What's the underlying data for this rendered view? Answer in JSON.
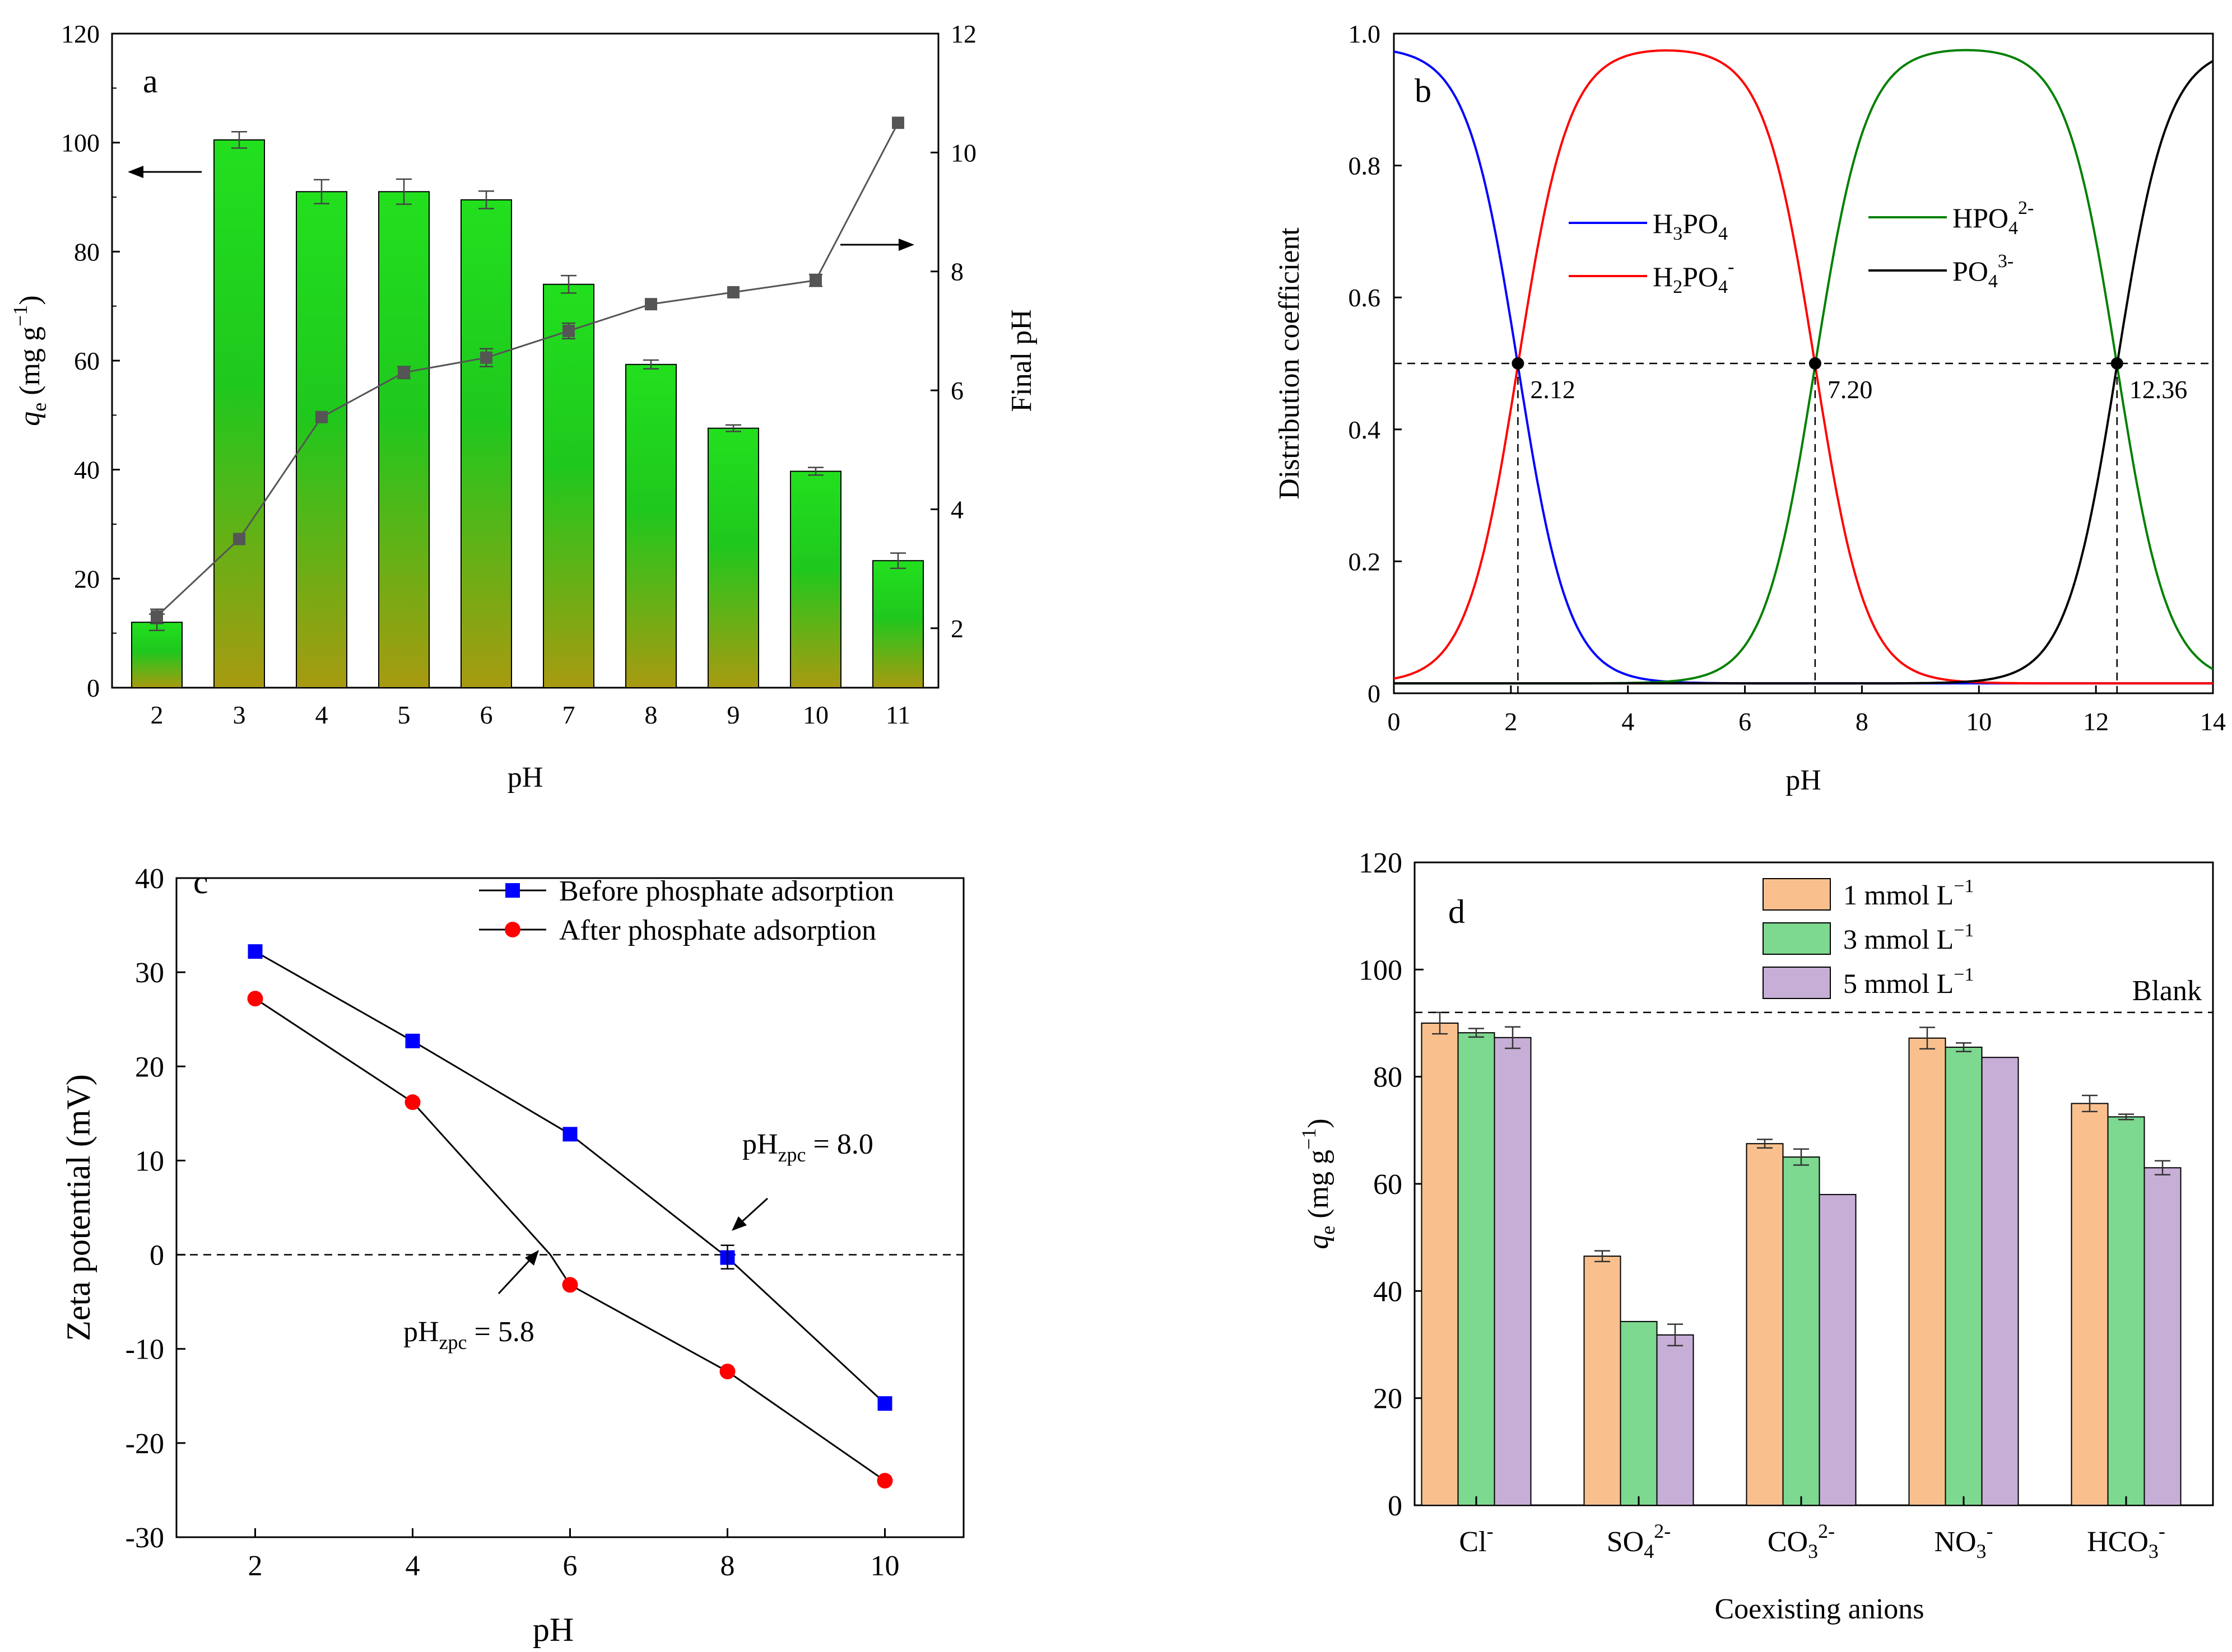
{
  "chart_data": [
    {
      "panel": "a",
      "type": "bar",
      "panel_label": "a",
      "xlabel": "pH",
      "ylabel_left": "q",
      "ylabel_left_sub": "e",
      "ylabel_left_unit": "(mg g",
      "ylabel_left_exp": "−1",
      "ylabel_left_close": ")",
      "ylabel_right": "Final pH",
      "categories": [
        "2",
        "3",
        "4",
        "5",
        "6",
        "7",
        "8",
        "9",
        "10",
        "11"
      ],
      "bars": {
        "name": "qe",
        "values": [
          12,
          100.5,
          91,
          91,
          89.5,
          74,
          59.3,
          47.6,
          39.7,
          23.3
        ],
        "errors": [
          1.5,
          1.5,
          2.2,
          2.3,
          1.6,
          1.6,
          0.8,
          0.6,
          0.7,
          1.4
        ]
      },
      "line": {
        "name": "Final pH",
        "values": [
          2.2,
          3.5,
          5.55,
          6.3,
          6.55,
          7.0,
          7.45,
          7.65,
          7.85,
          10.5
        ],
        "errors": [
          0.12,
          0,
          0,
          0.1,
          0.15,
          0.13,
          0,
          0,
          0.1,
          0
        ]
      },
      "ylim_left": [
        0,
        120
      ],
      "yticks_left": [
        "0",
        "20",
        "40",
        "60",
        "80",
        "100",
        "120"
      ],
      "ylim_right": [
        1,
        12
      ],
      "yticks_right": [
        "2",
        "4",
        "6",
        "8",
        "10",
        "12"
      ],
      "colors": {
        "bar_top": "#22e01e",
        "bar_bottom": "#a89a10",
        "line": "#555555"
      }
    },
    {
      "panel": "b",
      "type": "line",
      "panel_label": "b",
      "xlabel": "pH",
      "ylabel": "Distribution coefficient",
      "xlim": [
        0,
        14
      ],
      "ylim": [
        0,
        1.0
      ],
      "xticks": [
        "0",
        "2",
        "4",
        "6",
        "8",
        "10",
        "12",
        "14"
      ],
      "yticks": [
        "0",
        "0.2",
        "0.4",
        "0.6",
        "0.8",
        "1.0"
      ],
      "pKa": [
        2.12,
        7.2,
        12.36
      ],
      "pKa_labels": [
        "2.12",
        "7.20",
        "12.36"
      ],
      "series": [
        {
          "name": "H3PO4",
          "label": "H",
          "sub1": "3",
          "mid": "PO",
          "sub2": "4",
          "sup": "",
          "color": "#0000ff"
        },
        {
          "name": "H2PO4-",
          "label": "H",
          "sub1": "2",
          "mid": "PO",
          "sub2": "4",
          "sup": "-",
          "color": "#ff0000"
        },
        {
          "name": "HPO4 2-",
          "label": "HPO",
          "sub1": "",
          "mid": "",
          "sub2": "4",
          "sup": "2-",
          "color": "#008000"
        },
        {
          "name": "PO4 3-",
          "label": "PO",
          "sub1": "",
          "mid": "",
          "sub2": "4",
          "sup": "3-",
          "color": "#000000"
        }
      ]
    },
    {
      "panel": "c",
      "type": "line",
      "panel_label": "c",
      "xlabel": "pH",
      "ylabel": "Zeta potential (mV)",
      "xlim": [
        1,
        11
      ],
      "ylim": [
        -30,
        40
      ],
      "xticks": [
        "2",
        "4",
        "6",
        "8",
        "10"
      ],
      "yticks": [
        "-30",
        "-20",
        "-10",
        "0",
        "10",
        "20",
        "30",
        "40"
      ],
      "x": [
        2,
        4,
        6,
        8,
        10
      ],
      "series": [
        {
          "name": "Before phosphate adsorption",
          "values": [
            32.2,
            22.7,
            12.8,
            -0.3,
            -15.8
          ],
          "color": "#0000ff",
          "marker": "square"
        },
        {
          "name": "After phosphate adsorption",
          "values": [
            27.2,
            16.2,
            -3.2,
            -12.4,
            -24.0
          ],
          "color": "#ff0000",
          "marker": "circle"
        }
      ],
      "annotations": [
        {
          "text": "pH",
          "sub": "zpc",
          "rest": " = 8.0",
          "x": 8.0
        },
        {
          "text": "pH",
          "sub": "zpc",
          "rest": " = 5.8",
          "x": 5.8
        }
      ]
    },
    {
      "panel": "d",
      "type": "bar",
      "panel_label": "d",
      "xlabel": "Coexisting anions",
      "ylabel": "q",
      "ylabel_sub": "e",
      "ylabel_unit": "(mg g",
      "ylabel_exp": "−1",
      "ylabel_close": ")",
      "ylim": [
        0,
        120
      ],
      "yticks": [
        "0",
        "20",
        "40",
        "60",
        "80",
        "100",
        "120"
      ],
      "blank_value": 92,
      "blank_label": "Blank",
      "categories": [
        {
          "base": "Cl",
          "sub": "",
          "sup": "-"
        },
        {
          "base": "SO",
          "sub": "4",
          "sup": "2-"
        },
        {
          "base": "CO",
          "sub": "3",
          "sup": "2-"
        },
        {
          "base": "NO",
          "sub": "3",
          "sup": "-"
        },
        {
          "base": "HCO",
          "sub": "3",
          "sup": "-"
        }
      ],
      "series": [
        {
          "name": "1 mmol L",
          "sup": "−1",
          "values": [
            90,
            46.5,
            67.5,
            87.2,
            75
          ],
          "errors": [
            2.0,
            1.0,
            0.8,
            2.0,
            1.5
          ],
          "color": "#f9c08e"
        },
        {
          "name": "3 mmol L",
          "sup": "−1",
          "values": [
            88.2,
            34.3,
            65,
            85.5,
            72.5
          ],
          "errors": [
            0.8,
            0,
            1.5,
            0.8,
            0.5
          ],
          "color": "#7dd890"
        },
        {
          "name": "5 mmol L",
          "sup": "−1",
          "values": [
            87.3,
            31.8,
            58,
            83.6,
            63
          ],
          "errors": [
            2.0,
            2.0,
            0,
            0,
            1.3
          ],
          "color": "#c7aed6"
        }
      ]
    }
  ]
}
